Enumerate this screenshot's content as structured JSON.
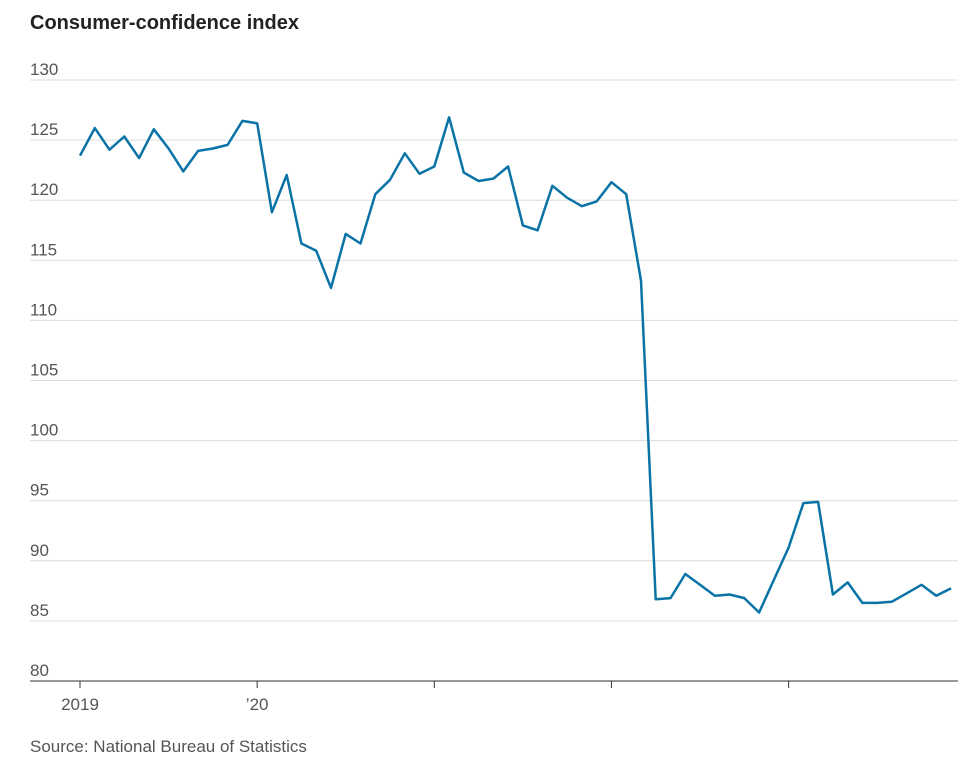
{
  "chart_data": {
    "type": "line",
    "title": "Consumer-confidence index",
    "source": "Source: National Bureau of Statistics",
    "categories": [
      "2019",
      null,
      null,
      null,
      null,
      null,
      null,
      null,
      null,
      null,
      null,
      null,
      "’20",
      null,
      null,
      null,
      null,
      null,
      null,
      null,
      null,
      null,
      null,
      null,
      null,
      null,
      null,
      null,
      null,
      null,
      null,
      null,
      null,
      null,
      null,
      null,
      null,
      null,
      null,
      null,
      null,
      null,
      null,
      null,
      null,
      null,
      null,
      null,
      null,
      null,
      null,
      null,
      null,
      null,
      null,
      null,
      null,
      null,
      null,
      null
    ],
    "series": [
      {
        "name": "Consumer-confidence index",
        "color": "#0a73a6",
        "values": [
          123.7,
          126.0,
          124.2,
          125.3,
          123.5,
          125.9,
          124.3,
          122.4,
          124.1,
          124.3,
          124.6,
          126.6,
          126.4,
          119.0,
          122.1,
          116.4,
          115.8,
          112.7,
          117.2,
          116.4,
          120.5,
          121.7,
          123.9,
          122.2,
          122.8,
          126.9,
          122.3,
          121.6,
          121.8,
          122.8,
          117.9,
          117.5,
          121.2,
          120.2,
          119.5,
          119.9,
          121.5,
          120.5,
          113.3,
          86.8,
          86.9,
          88.9,
          88.0,
          87.1,
          87.2,
          86.9,
          85.7,
          88.4,
          91.1,
          94.8,
          94.9,
          87.2,
          88.2,
          86.5,
          86.5,
          86.6,
          87.3,
          88.0,
          87.1,
          87.7
        ]
      }
    ],
    "ylim": [
      80,
      130
    ],
    "yticks": [
      80,
      85,
      90,
      95,
      100,
      105,
      110,
      115,
      120,
      125,
      130
    ],
    "grid": true
  }
}
